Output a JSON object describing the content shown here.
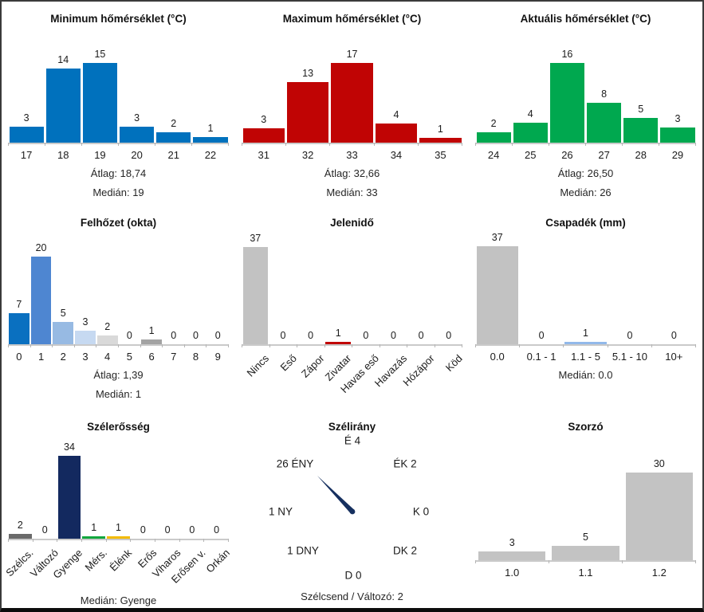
{
  "app": {
    "background": "#ffffff",
    "frame_border": "#3a3a3a",
    "bottom_bar": "#0c0c0c",
    "text_color": "#1b1b1b",
    "axis_color": "#cacaca",
    "tick_color": "#b5b5b5"
  },
  "chart_data": [
    {
      "id": "min-temp",
      "type": "bar",
      "title": "Minimum hőmérséklet (°C)",
      "categories": [
        "17",
        "18",
        "19",
        "20",
        "21",
        "22"
      ],
      "values": [
        3,
        14,
        15,
        3,
        2,
        1
      ],
      "bar_color": "#0071bd",
      "stats": [
        "Átlag: 18,74",
        "Medián: 19"
      ]
    },
    {
      "id": "max-temp",
      "type": "bar",
      "title": "Maximum hőmérséklet (°C)",
      "categories": [
        "31",
        "32",
        "33",
        "34",
        "35"
      ],
      "values": [
        3,
        13,
        17,
        4,
        1
      ],
      "bar_color": "#c00404",
      "stats": [
        "Átlag: 32,66",
        "Medián: 33"
      ]
    },
    {
      "id": "current-temp",
      "type": "bar",
      "title": "Aktuális hőmérséklet (°C)",
      "categories": [
        "24",
        "25",
        "26",
        "27",
        "28",
        "29"
      ],
      "values": [
        2,
        4,
        16,
        8,
        5,
        3
      ],
      "bar_color": "#00a84f",
      "stats": [
        "Átlag: 26,50",
        "Medián: 26"
      ]
    },
    {
      "id": "cloud-cover",
      "type": "bar",
      "title": "Felhőzet (okta)",
      "categories": [
        "0",
        "1",
        "2",
        "3",
        "4",
        "5",
        "6",
        "7",
        "8",
        "9"
      ],
      "values": [
        7,
        20,
        5,
        3,
        2,
        0,
        1,
        0,
        0,
        0
      ],
      "bar_colors": [
        "#0a70c0",
        "#4e86d1",
        "#97bae3",
        "#c6d9f1",
        "#d9d9d9",
        "#cccccc",
        "#a3a3a3",
        "#cccccc",
        "#cccccc",
        "#cccccc"
      ],
      "stats": [
        "Átlag: 1,39",
        "Medián: 1"
      ]
    },
    {
      "id": "present-weather",
      "type": "bar",
      "title": "Jelenidő",
      "categories": [
        "Nincs",
        "Eső",
        "Zápor",
        "Zivatar",
        "Havas eső",
        "Havazás",
        "Hózápor",
        "Köd"
      ],
      "values": [
        37,
        0,
        0,
        1,
        0,
        0,
        0,
        0
      ],
      "bar_colors": [
        "#c2c2c2",
        "#c2c2c2",
        "#c2c2c2",
        "#c00404",
        "#c2c2c2",
        "#c2c2c2",
        "#c2c2c2",
        "#c2c2c2"
      ],
      "rotated_labels": true,
      "stats": []
    },
    {
      "id": "precipitation",
      "type": "bar",
      "title": "Csapadék (mm)",
      "categories": [
        "0.0",
        "0.1 - 1",
        "1.1 - 5",
        "5.1 - 10",
        "10+"
      ],
      "values": [
        37,
        0,
        1,
        0,
        0
      ],
      "bar_colors": [
        "#c2c2c2",
        "#c2c2c2",
        "#92b9ea",
        "#c2c2c2",
        "#c2c2c2"
      ],
      "stats": [
        "Medián: 0.0"
      ]
    },
    {
      "id": "wind-strength",
      "type": "bar",
      "title": "Szélerősség",
      "categories": [
        "Szélcs.",
        "Változó",
        "Gyenge",
        "Mérs.",
        "Élénk",
        "Erős",
        "Viharos",
        "Erősen v.",
        "Orkán"
      ],
      "values": [
        2,
        0,
        34,
        1,
        1,
        0,
        0,
        0,
        0
      ],
      "bar_colors": [
        "#6a6a6a",
        "#cccccc",
        "#13295f",
        "#12a73e",
        "#f3ba00",
        "#cccccc",
        "#cccccc",
        "#cccccc",
        "#cccccc"
      ],
      "rotated_labels": true,
      "stats": [
        "Medián: Gyenge"
      ]
    },
    {
      "id": "wind-direction",
      "type": "compass",
      "title": "Szélirány",
      "points": [
        {
          "dir": "É",
          "count": 4,
          "label": "É 4"
        },
        {
          "dir": "ÉK",
          "count": 2,
          "label": "ÉK 2"
        },
        {
          "dir": "K",
          "count": 0,
          "label": "K 0"
        },
        {
          "dir": "DK",
          "count": 2,
          "label": "DK 2"
        },
        {
          "dir": "D",
          "count": 0,
          "label": "D 0"
        },
        {
          "dir": "DNY",
          "count": 1,
          "label": "1 DNY"
        },
        {
          "dir": "NY",
          "count": 1,
          "label": "1 NY"
        },
        {
          "dir": "ÉNY",
          "count": 26,
          "label": "26 ÉNY"
        }
      ],
      "needle_direction": "ÉNY",
      "needle_color": "#16305f",
      "footer": "Szélcsend / Változó: 2"
    },
    {
      "id": "multiplier",
      "type": "bar",
      "title": "Szorzó",
      "categories": [
        "1.0",
        "1.1",
        "1.2"
      ],
      "values": [
        3,
        5,
        30
      ],
      "bar_color": "#c3c3c3",
      "stats": []
    }
  ]
}
